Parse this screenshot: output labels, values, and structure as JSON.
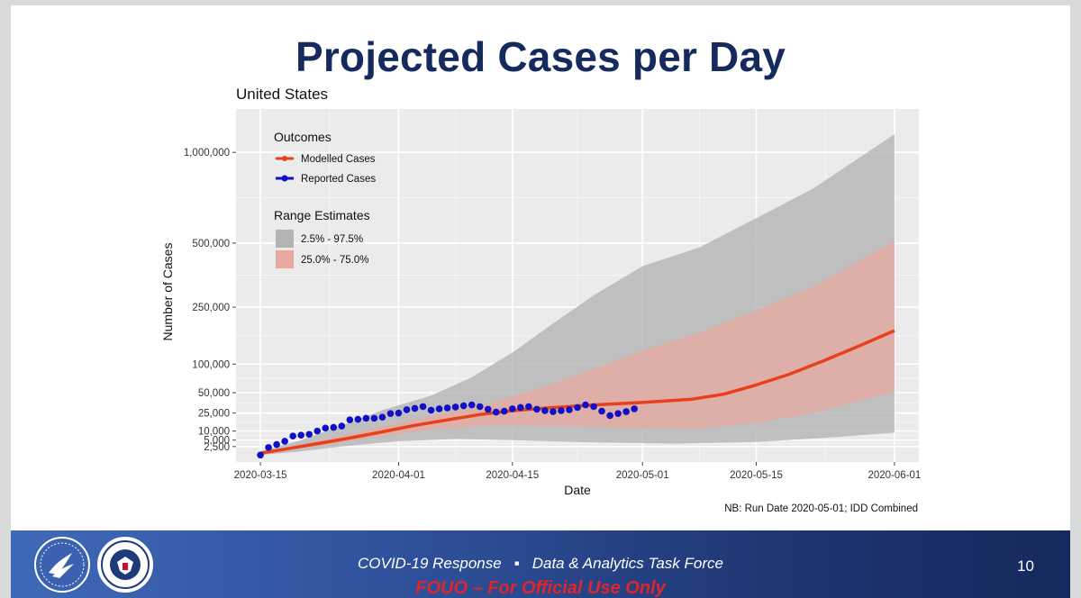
{
  "slide": {
    "title": "Projected Cases per Day",
    "footer": {
      "response": "COVID-19 Response",
      "separator": "▪",
      "task_force": "Data & Analytics Task Force",
      "classification": "FOUO – For Official Use Only",
      "page_number": "10"
    },
    "logos": [
      "hhs-seal",
      "dhs-seal"
    ],
    "colors": {
      "title": "#162a5e",
      "footer_left": "#3f69b8",
      "footer_right": "#16295c",
      "classification": "#e0262a"
    }
  },
  "chart_data": {
    "type": "line",
    "title": "United States",
    "xlabel": "Date",
    "ylabel": "Number of Cases",
    "note": "NB: Run Date 2020-05-01; IDD Combined",
    "x_ticks": [
      "2020-03-15",
      "2020-04-01",
      "2020-04-15",
      "2020-05-01",
      "2020-05-15",
      "2020-06-01"
    ],
    "y_ticks": [
      {
        "value": 2500,
        "label": "2,500"
      },
      {
        "value": 5000,
        "label": "5,000"
      },
      {
        "value": 10000,
        "label": "10,000"
      },
      {
        "value": 25000,
        "label": "25,000"
      },
      {
        "value": 50000,
        "label": "50,000"
      },
      {
        "value": 100000,
        "label": "100,000"
      },
      {
        "value": 250000,
        "label": "250,000"
      },
      {
        "value": 500000,
        "label": "500,000"
      },
      {
        "value": 1000000,
        "label": "1,000,000"
      }
    ],
    "y_scale": "sqrt",
    "xlim": [
      "2020-03-12",
      "2020-06-04"
    ],
    "ylim": [
      0,
      1300000
    ],
    "grid": true,
    "legend": {
      "position": "top-left",
      "outcomes_title": "Outcomes",
      "outcomes": [
        {
          "label": "Modelled Cases",
          "color": "#e8401c"
        },
        {
          "label": "Reported Cases",
          "color": "#1010c8"
        }
      ],
      "range_title": "Range Estimates",
      "ranges": [
        {
          "label": "2.5% - 97.5%",
          "color": "#b4b4b4"
        },
        {
          "label": "25.0% - 75.0%",
          "color": "#e8a8a0"
        }
      ]
    },
    "series": [
      {
        "name": "Modelled Cases",
        "kind": "line",
        "color": "#e8401c",
        "points": [
          [
            "2020-03-15",
            800
          ],
          [
            "2020-03-18",
            1700
          ],
          [
            "2020-03-22",
            3500
          ],
          [
            "2020-03-26",
            6000
          ],
          [
            "2020-03-30",
            9500
          ],
          [
            "2020-04-03",
            14000
          ],
          [
            "2020-04-07",
            18500
          ],
          [
            "2020-04-11",
            23500
          ],
          [
            "2020-04-15",
            27500
          ],
          [
            "2020-04-20",
            31000
          ],
          [
            "2020-04-25",
            34000
          ],
          [
            "2020-05-01",
            37000
          ],
          [
            "2020-05-07",
            41000
          ],
          [
            "2020-05-11",
            48000
          ],
          [
            "2020-05-15",
            62000
          ],
          [
            "2020-05-19",
            80000
          ],
          [
            "2020-05-23",
            105000
          ],
          [
            "2020-05-27",
            135000
          ],
          [
            "2020-06-01",
            180000
          ]
        ]
      },
      {
        "name": "Reported Cases",
        "kind": "points",
        "color": "#1010c8",
        "points": [
          [
            "2020-03-15",
            500
          ],
          [
            "2020-03-16",
            2200
          ],
          [
            "2020-03-17",
            3200
          ],
          [
            "2020-03-18",
            4500
          ],
          [
            "2020-03-19",
            7000
          ],
          [
            "2020-03-20",
            7500
          ],
          [
            "2020-03-21",
            8000
          ],
          [
            "2020-03-22",
            10000
          ],
          [
            "2020-03-23",
            12000
          ],
          [
            "2020-03-24",
            12500
          ],
          [
            "2020-03-25",
            13500
          ],
          [
            "2020-03-26",
            18500
          ],
          [
            "2020-03-27",
            19000
          ],
          [
            "2020-03-28",
            20000
          ],
          [
            "2020-03-29",
            20000
          ],
          [
            "2020-03-30",
            21000
          ],
          [
            "2020-03-31",
            24500
          ],
          [
            "2020-04-01",
            25000
          ],
          [
            "2020-04-02",
            28500
          ],
          [
            "2020-04-03",
            30000
          ],
          [
            "2020-04-04",
            32000
          ],
          [
            "2020-04-05",
            28000
          ],
          [
            "2020-04-06",
            29500
          ],
          [
            "2020-04-07",
            30500
          ],
          [
            "2020-04-08",
            31500
          ],
          [
            "2020-04-09",
            33000
          ],
          [
            "2020-04-10",
            34000
          ],
          [
            "2020-04-11",
            32000
          ],
          [
            "2020-04-12",
            29000
          ],
          [
            "2020-04-13",
            26000
          ],
          [
            "2020-04-14",
            27000
          ],
          [
            "2020-04-15",
            29500
          ],
          [
            "2020-04-16",
            31000
          ],
          [
            "2020-04-17",
            32000
          ],
          [
            "2020-04-18",
            29000
          ],
          [
            "2020-04-19",
            27500
          ],
          [
            "2020-04-20",
            26500
          ],
          [
            "2020-04-21",
            27500
          ],
          [
            "2020-04-22",
            28500
          ],
          [
            "2020-04-23",
            31000
          ],
          [
            "2020-04-24",
            34000
          ],
          [
            "2020-04-25",
            32000
          ],
          [
            "2020-04-26",
            27000
          ],
          [
            "2020-04-27",
            22500
          ],
          [
            "2020-04-28",
            24500
          ],
          [
            "2020-04-29",
            26500
          ],
          [
            "2020-04-30",
            29500
          ]
        ]
      },
      {
        "name": "2.5% - 97.5%",
        "kind": "band",
        "color": "#b4b4b4",
        "upper": [
          [
            "2020-03-15",
            1200
          ],
          [
            "2020-03-20",
            5000
          ],
          [
            "2020-03-25",
            14000
          ],
          [
            "2020-03-30",
            28000
          ],
          [
            "2020-04-05",
            46000
          ],
          [
            "2020-04-10",
            75000
          ],
          [
            "2020-04-15",
            125000
          ],
          [
            "2020-04-20",
            200000
          ],
          [
            "2020-04-25",
            290000
          ],
          [
            "2020-05-01",
            400000
          ],
          [
            "2020-05-08",
            480000
          ],
          [
            "2020-05-15",
            620000
          ],
          [
            "2020-05-22",
            780000
          ],
          [
            "2020-06-01",
            1120000
          ]
        ],
        "lower": [
          [
            "2020-03-15",
            500
          ],
          [
            "2020-03-20",
            1200
          ],
          [
            "2020-03-25",
            2500
          ],
          [
            "2020-04-01",
            4500
          ],
          [
            "2020-04-08",
            5500
          ],
          [
            "2020-04-15",
            5000
          ],
          [
            "2020-04-25",
            4000
          ],
          [
            "2020-05-05",
            3500
          ],
          [
            "2020-05-15",
            4200
          ],
          [
            "2020-05-25",
            6500
          ],
          [
            "2020-06-01",
            9000
          ]
        ]
      },
      {
        "name": "25.0% - 75.0%",
        "kind": "band",
        "color": "#e8a8a0",
        "upper": [
          [
            "2020-03-15",
            900
          ],
          [
            "2020-03-22",
            4500
          ],
          [
            "2020-03-30",
            13000
          ],
          [
            "2020-04-06",
            24000
          ],
          [
            "2020-04-12",
            35000
          ],
          [
            "2020-04-18",
            55000
          ],
          [
            "2020-04-25",
            90000
          ],
          [
            "2020-05-01",
            130000
          ],
          [
            "2020-05-08",
            175000
          ],
          [
            "2020-05-15",
            240000
          ],
          [
            "2020-05-22",
            320000
          ],
          [
            "2020-06-01",
            510000
          ]
        ],
        "lower": [
          [
            "2020-03-15",
            700
          ],
          [
            "2020-03-22",
            2600
          ],
          [
            "2020-03-30",
            7000
          ],
          [
            "2020-04-06",
            11500
          ],
          [
            "2020-04-12",
            14000
          ],
          [
            "2020-04-20",
            13500
          ],
          [
            "2020-05-01",
            12000
          ],
          [
            "2020-05-08",
            11500
          ],
          [
            "2020-05-15",
            16000
          ],
          [
            "2020-05-22",
            25000
          ],
          [
            "2020-06-01",
            52000
          ]
        ]
      }
    ]
  }
}
